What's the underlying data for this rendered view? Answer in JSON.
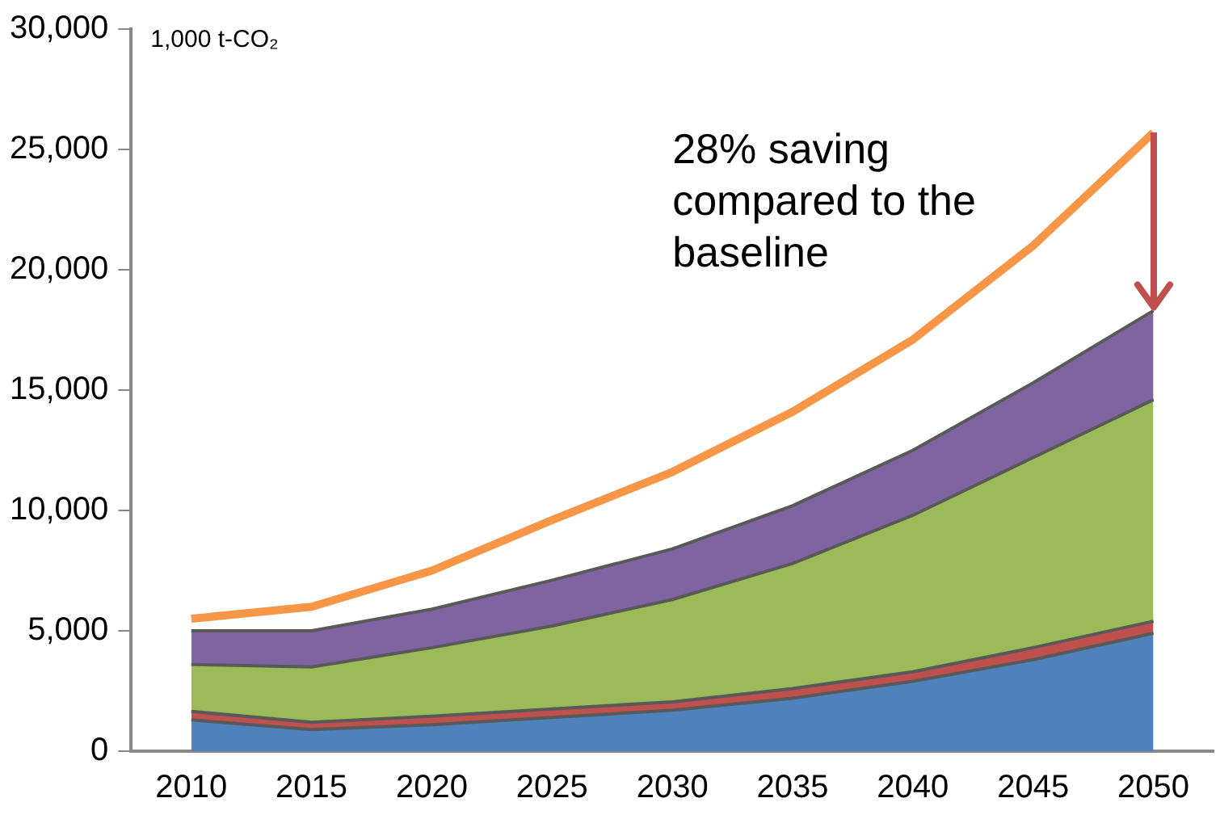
{
  "chart_data": {
    "type": "area",
    "stacked": true,
    "ylabel": "1,000 t-CO₂",
    "annotations": [
      "28% saving compared to the baseline"
    ],
    "categories": [
      "2010",
      "2015",
      "2020",
      "2025",
      "2030",
      "2035",
      "2040",
      "2045",
      "2050"
    ],
    "ylim": [
      0,
      30000
    ],
    "yticks": [
      {
        "value": 0,
        "label": "0"
      },
      {
        "value": 5000,
        "label": "5,000"
      },
      {
        "value": 10000,
        "label": "10,000"
      },
      {
        "value": 15000,
        "label": "15,000"
      },
      {
        "value": 20000,
        "label": "20,000"
      },
      {
        "value": 25000,
        "label": "25,000"
      },
      {
        "value": 30000,
        "label": "30,000"
      }
    ],
    "grid": false,
    "legend": false,
    "series": [
      {
        "color": "#4f81bd",
        "values": [
          1300,
          900,
          1100,
          1400,
          1700,
          2200,
          2900,
          3800,
          4900
        ]
      },
      {
        "color": "#c0504d",
        "values": [
          350,
          300,
          350,
          350,
          350,
          400,
          400,
          500,
          500
        ]
      },
      {
        "color": "#9bbb59",
        "values": [
          1950,
          2300,
          2850,
          3450,
          4250,
          5200,
          6500,
          7900,
          9200
        ]
      },
      {
        "color": "#8064a2",
        "values": [
          1400,
          1500,
          1600,
          1900,
          2100,
          2400,
          2700,
          3100,
          3700
        ]
      },
      {
        "type": "line",
        "color": "#f79646",
        "values": [
          5500,
          6000,
          7500,
          9600,
          11600,
          14100,
          17100,
          21000,
          25700
        ]
      }
    ]
  }
}
